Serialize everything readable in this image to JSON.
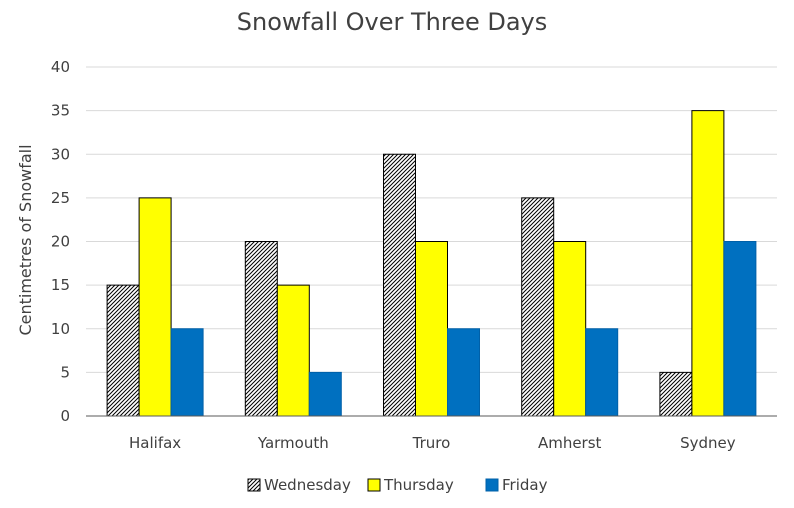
{
  "chart_data": {
    "type": "bar",
    "title": "Snowfall Over Three Days",
    "xlabel": "",
    "ylabel": "Centimetres of Snowfall",
    "ylim": [
      0,
      40
    ],
    "yticks": [
      0,
      5,
      10,
      15,
      20,
      25,
      30,
      35,
      40
    ],
    "grid": true,
    "legend_position": "bottom",
    "categories": [
      "Halifax",
      "Yarmouth",
      "Truro",
      "Amherst",
      "Sydney"
    ],
    "series": [
      {
        "name": "Wednesday",
        "values": [
          15,
          20,
          30,
          25,
          5
        ],
        "fill": "hatch",
        "color": "#000000"
      },
      {
        "name": "Thursday",
        "values": [
          25,
          15,
          20,
          20,
          35
        ],
        "fill": "solid",
        "color": "#ffff00"
      },
      {
        "name": "Friday",
        "values": [
          10,
          5,
          10,
          10,
          20
        ],
        "fill": "solid",
        "color": "#0070c0"
      }
    ]
  }
}
